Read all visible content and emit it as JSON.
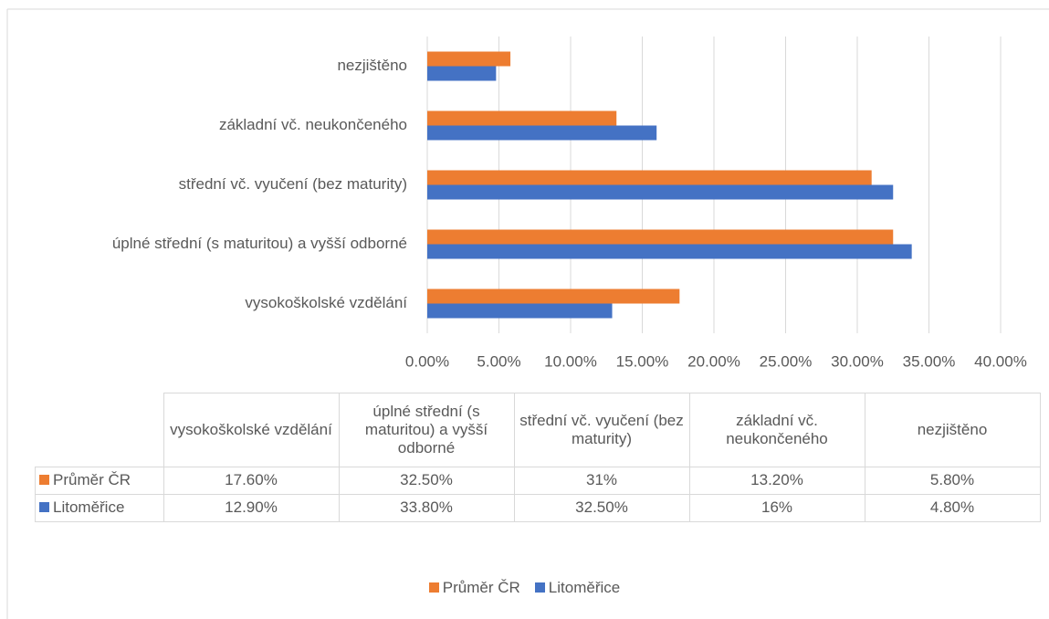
{
  "chart_data": {
    "type": "bar",
    "orientation": "horizontal",
    "categories": [
      "vysokoškolské vzdělání",
      "úplné střední (s maturitou) a vyšší odborné",
      "střední vč. vyučení (bez maturity)",
      "základní vč. neukončeného",
      "nezjištěno"
    ],
    "series": [
      {
        "name": "Průměr ČR",
        "color": "#ed7d31",
        "values": [
          17.6,
          32.5,
          31,
          13.2,
          5.8
        ],
        "value_labels": [
          "17.60%",
          "32.50%",
          "31%",
          "13.20%",
          "5.80%"
        ]
      },
      {
        "name": "Litoměřice",
        "color": "#4472c4",
        "values": [
          12.9,
          33.8,
          32.5,
          16,
          4.8
        ],
        "value_labels": [
          "12.90%",
          "33.80%",
          "32.50%",
          "16%",
          "4.80%"
        ]
      }
    ],
    "xlim": [
      0,
      40
    ],
    "xticks": [
      {
        "value": 0,
        "label": "0.00%"
      },
      {
        "value": 5,
        "label": "5.00%"
      },
      {
        "value": 10,
        "label": "10.00%"
      },
      {
        "value": 15,
        "label": "15.00%"
      },
      {
        "value": 20,
        "label": "20.00%"
      },
      {
        "value": 25,
        "label": "25.00%"
      },
      {
        "value": 30,
        "label": "30.00%"
      },
      {
        "value": 35,
        "label": "35.00%"
      },
      {
        "value": 40,
        "label": "40.00%"
      }
    ],
    "grid": true,
    "legend": "bottom",
    "data_table": true
  }
}
